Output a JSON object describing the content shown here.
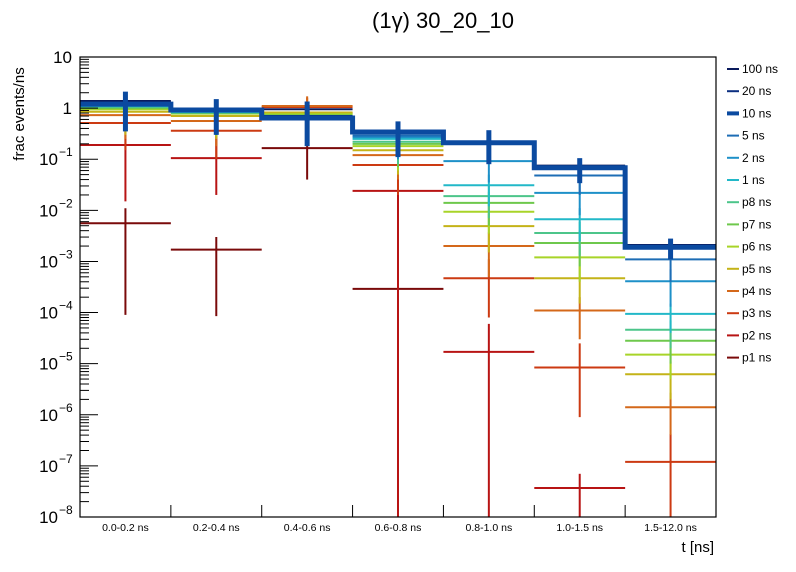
{
  "chart_data": {
    "type": "line",
    "subtype": "step-histogram-with-errorbars",
    "title": "(1γ) 30_20_10",
    "xlabel": "t [ns]",
    "ylabel": "frac events/ns",
    "yscale": "log",
    "ylim": [
      1e-08,
      10
    ],
    "y_ticks": [
      {
        "value": 10,
        "label": "10",
        "exp": ""
      },
      {
        "value": 1,
        "label": "1",
        "exp": ""
      },
      {
        "value": 0.1,
        "label": "10",
        "exp": "−1"
      },
      {
        "value": 0.01,
        "label": "10",
        "exp": "−2"
      },
      {
        "value": 0.001,
        "label": "10",
        "exp": "−3"
      },
      {
        "value": 0.0001,
        "label": "10",
        "exp": "−4"
      },
      {
        "value": 1e-05,
        "label": "10",
        "exp": "−5"
      },
      {
        "value": 1e-06,
        "label": "10",
        "exp": "−6"
      },
      {
        "value": 1e-07,
        "label": "10",
        "exp": "−7"
      },
      {
        "value": 1e-08,
        "label": "10",
        "exp": "−8"
      }
    ],
    "categories": [
      "0.0-0.2 ns",
      "0.2-0.4 ns",
      "0.4-0.6 ns",
      "0.6-0.8 ns",
      "0.8-1.0 ns",
      "1.0-1.5 ns",
      "1.5-12.0 ns"
    ],
    "grid": false,
    "legend_position": "right",
    "series": [
      {
        "name": "100 ns",
        "color": "#0a1a5c",
        "width": 2,
        "errorbars": false,
        "values": [
          1.38,
          0.95,
          0.95,
          0.34,
          0.22,
          0.075,
          0.0021
        ]
      },
      {
        "name": "20 ns",
        "color": "#0c2f80",
        "width": 2,
        "errorbars": false,
        "values": [
          1.3,
          0.93,
          0.7,
          0.34,
          0.215,
          0.072,
          0.002
        ]
      },
      {
        "name": "10 ns",
        "color": "#0b4aa0",
        "width": 5,
        "errorbars": true,
        "values": [
          1.2,
          0.92,
          0.64,
          0.34,
          0.21,
          0.068,
          0.0019
        ],
        "err_low": [
          0.35,
          0.3,
          0.18,
          0.11,
          0.08,
          0.034,
          0.0011
        ],
        "err_high": [
          2.1,
          1.5,
          1.35,
          0.55,
          0.37,
          0.105,
          0.0028
        ]
      },
      {
        "name": "5 ns",
        "color": "#1d6db5",
        "width": 2,
        "errorbars": true,
        "values": [
          1.15,
          0.88,
          0.6,
          0.29,
          0.2,
          0.048,
          0.0011
        ],
        "err_low": [
          0.4,
          0.3,
          0.2,
          0.12,
          0.09,
          0.02,
          0.0004
        ],
        "err_high": [
          1.8,
          1.4,
          1.0,
          0.46,
          0.32,
          0.08,
          0.0018
        ]
      },
      {
        "name": "2 ns",
        "color": "#1e90c8",
        "width": 2,
        "errorbars": true,
        "values": [
          1.12,
          0.86,
          0.62,
          0.27,
          0.092,
          0.022,
          0.00041
        ],
        "err_low": [
          0.4,
          0.3,
          0.2,
          0.1,
          0.035,
          0.008,
          0.00013
        ],
        "err_high": [
          1.8,
          1.4,
          1.0,
          0.44,
          0.15,
          0.036,
          0.0007
        ]
      },
      {
        "name": "1 ns",
        "color": "#22b8c8",
        "width": 2,
        "errorbars": true,
        "values": [
          1.1,
          0.84,
          0.66,
          0.25,
          0.031,
          0.0067,
          9.4e-05
        ],
        "err_low": [
          0.4,
          0.3,
          0.2,
          0.1,
          0.012,
          0.0025,
          4e-05
        ],
        "err_high": [
          1.8,
          1.4,
          1.0,
          0.4,
          0.05,
          0.011,
          0.00015
        ]
      },
      {
        "name": "p8 ns",
        "color": "#4cc58a",
        "width": 2,
        "errorbars": true,
        "values": [
          1.05,
          0.82,
          0.68,
          0.22,
          0.019,
          0.0036,
          4.6e-05
        ],
        "err_low": [
          0.4,
          0.3,
          0.2,
          0.08,
          0.007,
          0.0013,
          2e-05
        ],
        "err_high": [
          1.7,
          1.3,
          1.0,
          0.36,
          0.03,
          0.006,
          7e-05
        ]
      },
      {
        "name": "p7 ns",
        "color": "#6ec84c",
        "width": 2,
        "errorbars": true,
        "values": [
          1.0,
          0.8,
          0.72,
          0.2,
          0.014,
          0.0023,
          2.8e-05
        ],
        "err_low": [
          0.4,
          0.3,
          0.2,
          0.07,
          0.005,
          0.0008,
          1e-05
        ],
        "err_high": [
          1.6,
          1.3,
          1.1,
          0.33,
          0.023,
          0.004,
          4.6e-05
        ]
      },
      {
        "name": "p6 ns",
        "color": "#a8d428",
        "width": 2,
        "errorbars": true,
        "values": [
          0.95,
          0.78,
          0.76,
          0.18,
          0.0094,
          0.0012,
          1.5e-05
        ],
        "err_low": [
          0.35,
          0.28,
          0.25,
          0.06,
          0.0035,
          0.0004,
          5e-06
        ],
        "err_high": [
          1.5,
          1.25,
          1.2,
          0.3,
          0.016,
          0.002,
          2.6e-05
        ]
      },
      {
        "name": "p5 ns",
        "color": "#c4b318",
        "width": 2,
        "errorbars": true,
        "values": [
          0.85,
          0.7,
          0.82,
          0.15,
          0.0049,
          0.00047,
          6.2e-06
        ],
        "err_low": [
          0.3,
          0.25,
          0.28,
          0.05,
          0.0015,
          0.00015,
          2e-06
        ],
        "err_high": [
          1.4,
          1.15,
          1.3,
          0.26,
          0.0085,
          0.0008,
          1.1e-05
        ]
      },
      {
        "name": "p4 ns",
        "color": "#d4681a",
        "width": 2,
        "errorbars": true,
        "values": [
          0.73,
          0.56,
          1.1,
          0.12,
          0.002,
          0.00011,
          1.4e-06
        ],
        "err_low": [
          0.25,
          0.18,
          0.4,
          0.04,
          0.0005,
          3e-05,
          4e-07
        ],
        "err_high": [
          1.2,
          0.95,
          1.7,
          0.21,
          0.0037,
          0.0002,
          2.7e-06
        ]
      },
      {
        "name": "p3 ns",
        "color": "#cc3a12",
        "width": 2,
        "errorbars": true,
        "values": [
          0.51,
          0.36,
          1.05,
          0.077,
          0.00047,
          8.4e-06,
          1.2e-07
        ],
        "err_low": [
          0.15,
          0.1,
          0.35,
          0.02,
          8e-05,
          9e-07,
          1e-08
        ],
        "err_high": [
          0.9,
          0.65,
          1.6,
          0.15,
          0.0011,
          2.5e-05,
          4.2e-07
        ]
      },
      {
        "name": "p2 ns",
        "color": "#b81414",
        "width": 2,
        "errorbars": true,
        "values": [
          0.19,
          0.105,
          0.8,
          0.024,
          1.7e-05,
          3.7e-08,
          null
        ],
        "err_low": [
          0.015,
          0.02,
          0.25,
          1e-08,
          1e-08,
          1e-08,
          null
        ],
        "err_high": [
          0.35,
          0.3,
          1.3,
          0.055,
          6e-05,
          7e-08,
          null
        ]
      },
      {
        "name": "p1 ns",
        "color": "#7a0a0a",
        "width": 2,
        "errorbars": true,
        "values": [
          0.0056,
          0.0017,
          0.165,
          0.00029,
          null,
          null,
          null
        ],
        "err_low": [
          9e-05,
          8.5e-05,
          0.04,
          1e-08,
          null,
          null,
          null
        ],
        "err_high": [
          0.011,
          0.003,
          0.38,
          0.0008,
          null,
          null,
          null
        ]
      }
    ]
  }
}
